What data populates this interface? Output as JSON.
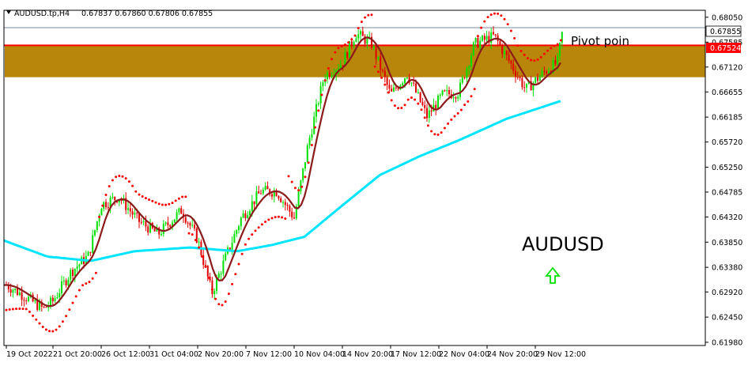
{
  "window": {
    "title": "AUDUSD.tp,H4",
    "ohlc": "0.67837 0.67860 0.67806 0.67855"
  },
  "annotations": {
    "symbol_label": "AUDUSD",
    "pivot_label": "Pivot poin"
  },
  "colors": {
    "bull": "#00e000",
    "bear": "#e00000",
    "zone": "#b8860b",
    "zone_border": "#ff0000",
    "ma_fast": "#8b1a1a",
    "ma_slow": "#00e5ff",
    "psar": "#ff0000",
    "arrow": "#00e000",
    "grid": "#c0c0c0",
    "price_line": "#778899"
  },
  "chart_data": {
    "type": "candlestick",
    "symbol": "AUDUSD.tp",
    "timeframe": "H4",
    "ylim": [
      0.6192,
      0.6818
    ],
    "y_ticks": [
      "0.68050",
      "0.67585",
      "0.67120",
      "0.66655",
      "0.66185",
      "0.65720",
      "0.65250",
      "0.64785",
      "0.64320",
      "0.63850",
      "0.63380",
      "0.62920",
      "0.62450",
      "0.61980"
    ],
    "x_ticks": [
      "19 Oct 2022",
      "21 Oct 20:00",
      "26 Oct 12:00",
      "31 Oct 04:00",
      "2 Nov 20:00",
      "7 Nov 12:00",
      "10 Nov 04:00",
      "14 Nov 20:00",
      "17 Nov 12:00",
      "22 Nov 04:00",
      "24 Nov 20:00",
      "29 Nov 12:00"
    ],
    "current_price": "0.67855",
    "resistance_price": "0.67524",
    "zone": {
      "from": 0.6693,
      "to": 0.6752
    },
    "key_closes": [
      {
        "x": "19 Oct 2022",
        "price": 0.6305
      },
      {
        "x": "21 Oct 20:00",
        "price": 0.6275
      },
      {
        "x": "26 Oct 12:00",
        "price": 0.641
      },
      {
        "x": "31 Oct 04:00",
        "price": 0.64
      },
      {
        "x": "2 Nov 20:00",
        "price": 0.63
      },
      {
        "x": "7 Nov 12:00",
        "price": 0.6485
      },
      {
        "x": "10 Nov 04:00",
        "price": 0.667
      },
      {
        "x": "14 Nov 20:00",
        "price": 0.674
      },
      {
        "x": "17 Nov 12:00",
        "price": 0.665
      },
      {
        "x": "22 Nov 04:00",
        "price": 0.6655
      },
      {
        "x": "24 Nov 20:00",
        "price": 0.6705
      },
      {
        "x": "29 Nov 12:00",
        "price": 0.6785
      }
    ],
    "series": [
      {
        "name": "MA fast",
        "values": [
          0.63,
          0.633,
          0.644,
          0.6395,
          0.635,
          0.6445,
          0.6525,
          0.673,
          0.666,
          0.664,
          0.674,
          0.67
        ]
      },
      {
        "name": "MA slow",
        "values": [
          0.6388,
          0.6355,
          0.6363,
          0.637,
          0.6375,
          0.638,
          0.6405,
          0.649,
          0.655,
          0.658,
          0.662,
          0.665
        ]
      }
    ]
  }
}
